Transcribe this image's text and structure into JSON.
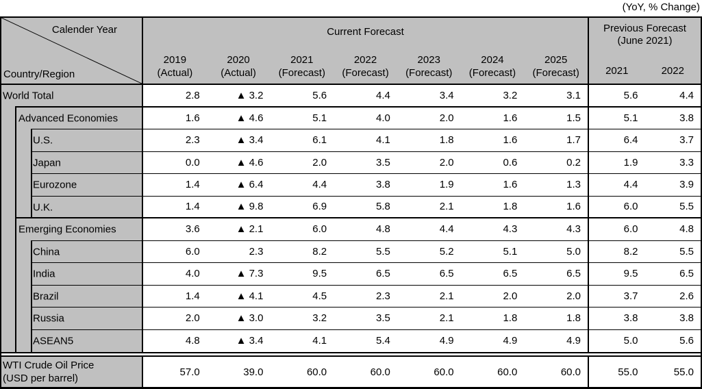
{
  "caption": "(YoY, % Change)",
  "colors": {
    "header_fill": "#c0c0c0",
    "border": "#000000",
    "text": "#000000"
  },
  "header": {
    "corner": {
      "top_right_label": "Calender Year",
      "bottom_left_label": "Country/Region"
    },
    "current": {
      "title": "Current Forecast",
      "columns": [
        {
          "year": "2019",
          "note": "(Actual)"
        },
        {
          "year": "2020",
          "note": "(Actual)"
        },
        {
          "year": "2021",
          "note": "(Forecast)"
        },
        {
          "year": "2022",
          "note": "(Forecast)"
        },
        {
          "year": "2023",
          "note": "(Forecast)"
        },
        {
          "year": "2024",
          "note": "(Forecast)"
        },
        {
          "year": "2025",
          "note": "(Forecast)"
        }
      ]
    },
    "previous": {
      "title_line1": "Previous Forecast",
      "title_line2": "(June 2021)",
      "columns": [
        "2021",
        "2022"
      ]
    }
  },
  "chart_data": {
    "type": "table",
    "title": "(YoY, % Change)",
    "negative_marker": "▲",
    "column_groups": [
      "Current Forecast",
      "Previous Forecast (June 2021)"
    ],
    "columns": [
      "2019 (Actual)",
      "2020 (Actual)",
      "2021 (Forecast)",
      "2022 (Forecast)",
      "2023 (Forecast)",
      "2024 (Forecast)",
      "2025 (Forecast)",
      "Previous 2021",
      "Previous 2022"
    ],
    "rows": [
      {
        "label": "World Total",
        "indent": 0,
        "current": [
          "2.8",
          "▲ 3.2",
          "5.6",
          "4.4",
          "3.4",
          "3.2",
          "3.1"
        ],
        "previous": [
          "5.6",
          "4.4"
        ]
      },
      {
        "label": "Advanced Economies",
        "indent": 1,
        "current": [
          "1.6",
          "▲ 4.6",
          "5.1",
          "4.0",
          "2.0",
          "1.6",
          "1.5"
        ],
        "previous": [
          "5.1",
          "3.8"
        ]
      },
      {
        "label": "U.S.",
        "indent": 2,
        "current": [
          "2.3",
          "▲ 3.4",
          "6.1",
          "4.1",
          "1.8",
          "1.6",
          "1.7"
        ],
        "previous": [
          "6.4",
          "3.7"
        ]
      },
      {
        "label": "Japan",
        "indent": 2,
        "current": [
          "0.0",
          "▲ 4.6",
          "2.0",
          "3.5",
          "2.0",
          "0.6",
          "0.2"
        ],
        "previous": [
          "1.9",
          "3.3"
        ]
      },
      {
        "label": "Eurozone",
        "indent": 2,
        "current": [
          "1.4",
          "▲ 6.4",
          "4.4",
          "3.8",
          "1.9",
          "1.6",
          "1.3"
        ],
        "previous": [
          "4.4",
          "3.9"
        ]
      },
      {
        "label": "U.K.",
        "indent": 2,
        "current": [
          "1.4",
          "▲ 9.8",
          "6.9",
          "5.8",
          "2.1",
          "1.8",
          "1.6"
        ],
        "previous": [
          "6.0",
          "5.5"
        ]
      },
      {
        "label": "Emerging Economies",
        "indent": 1,
        "current": [
          "3.6",
          "▲ 2.1",
          "6.0",
          "4.8",
          "4.4",
          "4.3",
          "4.3"
        ],
        "previous": [
          "6.0",
          "4.8"
        ]
      },
      {
        "label": "China",
        "indent": 2,
        "current": [
          "6.0",
          "2.3",
          "8.2",
          "5.5",
          "5.2",
          "5.1",
          "5.0"
        ],
        "previous": [
          "8.2",
          "5.5"
        ]
      },
      {
        "label": "India",
        "indent": 2,
        "current": [
          "4.0",
          "▲ 7.3",
          "9.5",
          "6.5",
          "6.5",
          "6.5",
          "6.5"
        ],
        "previous": [
          "9.5",
          "6.5"
        ]
      },
      {
        "label": "Brazil",
        "indent": 2,
        "current": [
          "1.4",
          "▲ 4.1",
          "4.5",
          "2.3",
          "2.1",
          "2.0",
          "2.0"
        ],
        "previous": [
          "3.7",
          "2.6"
        ]
      },
      {
        "label": "Russia",
        "indent": 2,
        "current": [
          "2.0",
          "▲ 3.0",
          "3.2",
          "3.5",
          "2.1",
          "1.8",
          "1.8"
        ],
        "previous": [
          "3.8",
          "3.8"
        ]
      },
      {
        "label": "ASEAN5",
        "indent": 2,
        "current": [
          "4.8",
          "▲ 3.4",
          "4.1",
          "5.4",
          "4.9",
          "4.9",
          "4.9"
        ],
        "previous": [
          "5.0",
          "5.6"
        ]
      }
    ],
    "footer_row": {
      "label_line1": "WTI Crude Oil Price",
      "label_line2": "(USD per barrel)",
      "current": [
        "57.0",
        "39.0",
        "60.0",
        "60.0",
        "60.0",
        "60.0",
        "60.0"
      ],
      "previous": [
        "55.0",
        "55.0"
      ]
    }
  }
}
